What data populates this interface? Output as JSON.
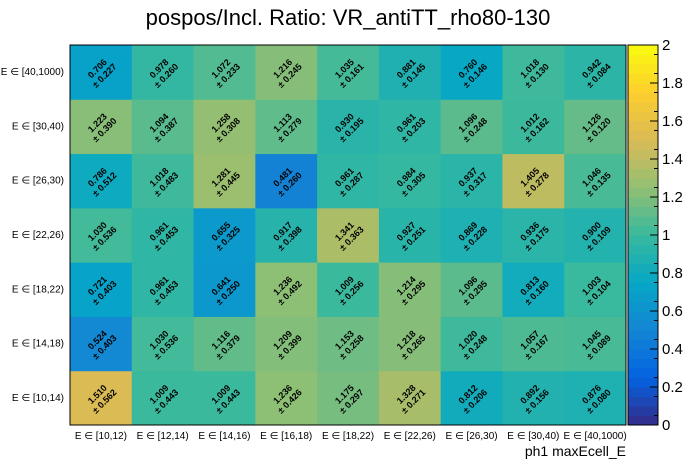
{
  "chart_data": {
    "type": "heatmap",
    "title": "pospos/Incl. Ratio: VR_antiTT_rho80-130",
    "xlabel": "ph1 maxEcell_E",
    "ylabel": "",
    "x_categories": [
      "E ∈ [10,12)",
      "E ∈ [12,14)",
      "E ∈ [14,16)",
      "E ∈ [16,18)",
      "E ∈ [18,22)",
      "E ∈ [22,26)",
      "E ∈ [26,30)",
      "E ∈ [30,40)",
      "E ∈ [40,1000)"
    ],
    "y_categories": [
      "E ∈ [10,14)",
      "E ∈ [14,18)",
      "E ∈ [18,22)",
      "E ∈ [22,26)",
      "E ∈ [26,30)",
      "E ∈ [30,40)",
      "E ∈ [40,1000)"
    ],
    "values": [
      [
        1.51,
        1.009,
        1.009,
        1.236,
        1.175,
        1.328,
        0.812,
        0.892,
        0.876
      ],
      [
        0.524,
        1.03,
        1.116,
        1.209,
        1.153,
        1.218,
        1.02,
        1.057,
        1.045
      ],
      [
        0.721,
        0.961,
        0.641,
        1.236,
        1.009,
        1.214,
        1.096,
        0.813,
        1.003
      ],
      [
        1.03,
        0.961,
        0.655,
        0.917,
        1.341,
        0.927,
        0.869,
        0.936,
        0.9
      ],
      [
        0.786,
        1.018,
        1.281,
        0.481,
        0.961,
        0.984,
        0.937,
        1.405,
        1.046
      ],
      [
        1.223,
        1.094,
        1.258,
        1.113,
        0.93,
        0.961,
        1.096,
        1.012,
        1.126
      ],
      [
        0.706,
        0.978,
        1.072,
        1.216,
        1.035,
        0.881,
        0.76,
        1.018,
        0.942
      ]
    ],
    "errors": [
      [
        0.562,
        0.443,
        0.443,
        0.426,
        0.297,
        0.271,
        0.206,
        0.156,
        0.08
      ],
      [
        0.403,
        0.536,
        0.379,
        0.399,
        0.258,
        0.265,
        0.248,
        0.167,
        0.089
      ],
      [
        0.403,
        0.453,
        0.25,
        0.492,
        0.256,
        0.295,
        0.295,
        0.16,
        0.104
      ],
      [
        0.536,
        0.453,
        0.325,
        0.398,
        0.363,
        0.251,
        0.228,
        0.175,
        0.109
      ],
      [
        0.512,
        0.483,
        0.445,
        0.26,
        0.287,
        0.305,
        0.317,
        0.278,
        0.135
      ],
      [
        0.39,
        0.387,
        0.308,
        0.279,
        0.195,
        0.203,
        0.248,
        0.162,
        0.12
      ],
      [
        0.227,
        0.26,
        0.233,
        0.245,
        0.161,
        0.145,
        0.146,
        0.13,
        0.084
      ]
    ],
    "zlim": [
      0,
      2
    ],
    "z_ticks": [
      "0",
      "0.2",
      "0.4",
      "0.6",
      "0.8",
      "1",
      "1.2",
      "1.4",
      "1.6",
      "1.8",
      "2"
    ],
    "err_prefix": "± ",
    "value_precision": 3,
    "colormap": [
      "#352a87",
      "#0363e1",
      "#1485d4",
      "#06a7c6",
      "#38b99e",
      "#92bf73",
      "#d9ba56",
      "#fcce2e",
      "#f9fb0e"
    ]
  }
}
